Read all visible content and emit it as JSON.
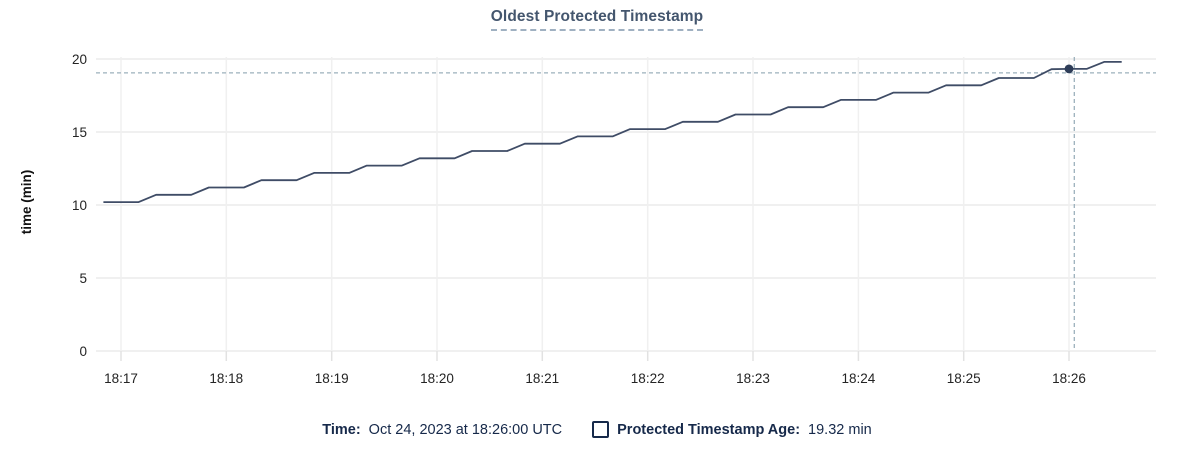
{
  "title": "Oldest Protected Timestamp",
  "legend": {
    "time_label": "Time:",
    "time_value": "Oct 24, 2023 at 18:26:00 UTC",
    "series_swatch": "empty-square-outline",
    "series_label": "Protected Timestamp Age:",
    "series_value": "19.32 min"
  },
  "colors": {
    "title": "#44566e",
    "title_underline": "#9fb0c1",
    "legend_text": "#16294a",
    "line": "#3f4c66",
    "dot": "#2e3d58",
    "grid": "#f0f0f0",
    "grid_tick": "#e2e2e2",
    "tick_text": "#242424",
    "crosshair": "#9cb0bc"
  },
  "chart_data": {
    "type": "line",
    "title": "Oldest Protected Timestamp",
    "xlabel": "",
    "ylabel": "time (min)",
    "ylim": [
      0,
      20
    ],
    "yticks": [
      0,
      5,
      10,
      15,
      20
    ],
    "x_tick_labels": [
      "18:17",
      "18:18",
      "18:19",
      "18:20",
      "18:21",
      "18:22",
      "18:23",
      "18:24",
      "18:25",
      "18:26"
    ],
    "x_ticks_seconds": [
      0,
      60,
      120,
      180,
      240,
      300,
      360,
      420,
      480,
      540
    ],
    "x_domain_seconds": [
      -14,
      590
    ],
    "grid": true,
    "legend_position": "bottom",
    "series": [
      {
        "name": "Protected Timestamp Age",
        "unit": "min",
        "points_seconds_value": [
          [
            -10,
            10.2
          ],
          [
            0,
            10.2
          ],
          [
            10,
            10.2
          ],
          [
            20,
            10.7
          ],
          [
            30,
            10.7
          ],
          [
            40,
            10.7
          ],
          [
            50,
            11.2
          ],
          [
            60,
            11.2
          ],
          [
            70,
            11.2
          ],
          [
            80,
            11.7
          ],
          [
            90,
            11.7
          ],
          [
            100,
            11.7
          ],
          [
            110,
            12.2
          ],
          [
            120,
            12.2
          ],
          [
            130,
            12.2
          ],
          [
            140,
            12.7
          ],
          [
            150,
            12.7
          ],
          [
            160,
            12.7
          ],
          [
            170,
            13.2
          ],
          [
            180,
            13.2
          ],
          [
            190,
            13.2
          ],
          [
            200,
            13.7
          ],
          [
            210,
            13.7
          ],
          [
            220,
            13.7
          ],
          [
            230,
            14.2
          ],
          [
            240,
            14.2
          ],
          [
            250,
            14.2
          ],
          [
            260,
            14.7
          ],
          [
            270,
            14.7
          ],
          [
            280,
            14.7
          ],
          [
            290,
            15.2
          ],
          [
            300,
            15.2
          ],
          [
            310,
            15.2
          ],
          [
            320,
            15.7
          ],
          [
            330,
            15.7
          ],
          [
            340,
            15.7
          ],
          [
            350,
            16.2
          ],
          [
            360,
            16.2
          ],
          [
            370,
            16.2
          ],
          [
            380,
            16.7
          ],
          [
            390,
            16.7
          ],
          [
            400,
            16.7
          ],
          [
            410,
            17.2
          ],
          [
            420,
            17.2
          ],
          [
            430,
            17.2
          ],
          [
            440,
            17.7
          ],
          [
            450,
            17.7
          ],
          [
            460,
            17.7
          ],
          [
            470,
            18.2
          ],
          [
            480,
            18.2
          ],
          [
            490,
            18.2
          ],
          [
            500,
            18.7
          ],
          [
            510,
            18.7
          ],
          [
            520,
            18.7
          ],
          [
            530,
            19.3
          ],
          [
            540,
            19.32
          ],
          [
            550,
            19.32
          ],
          [
            560,
            19.8
          ],
          [
            570,
            19.8
          ]
        ]
      }
    ],
    "hover": {
      "time_value": "Oct 24, 2023 at 18:26:00 UTC",
      "point_seconds": 540,
      "point_value": 19.32,
      "vline_seconds": 543,
      "hline_value": 19.05
    }
  }
}
